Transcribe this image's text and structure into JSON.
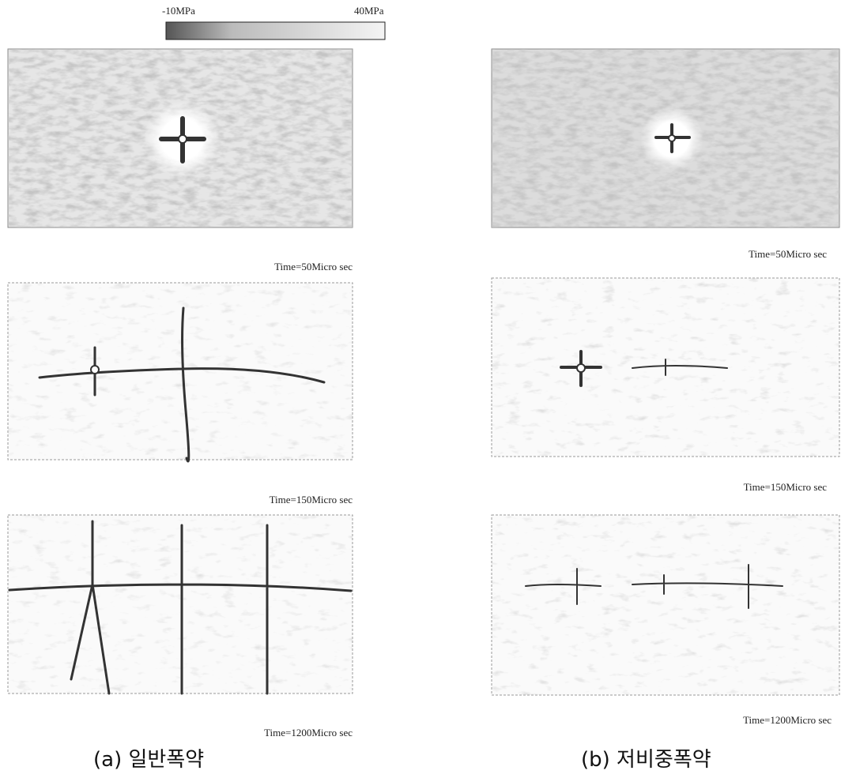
{
  "colorbar": {
    "min_label": "-10MPa",
    "max_label": "40MPa"
  },
  "panels": [
    {
      "label": "(a) 일반폭약",
      "captions": [
        "Time=50Micro sec",
        "Time=150Micro sec",
        "Time=1200Micro sec"
      ]
    },
    {
      "label": "(b) 저비중폭약",
      "captions": [
        "Time=50Micro sec",
        "Time=150Micro sec",
        "Time=1200Micro sec"
      ]
    }
  ]
}
